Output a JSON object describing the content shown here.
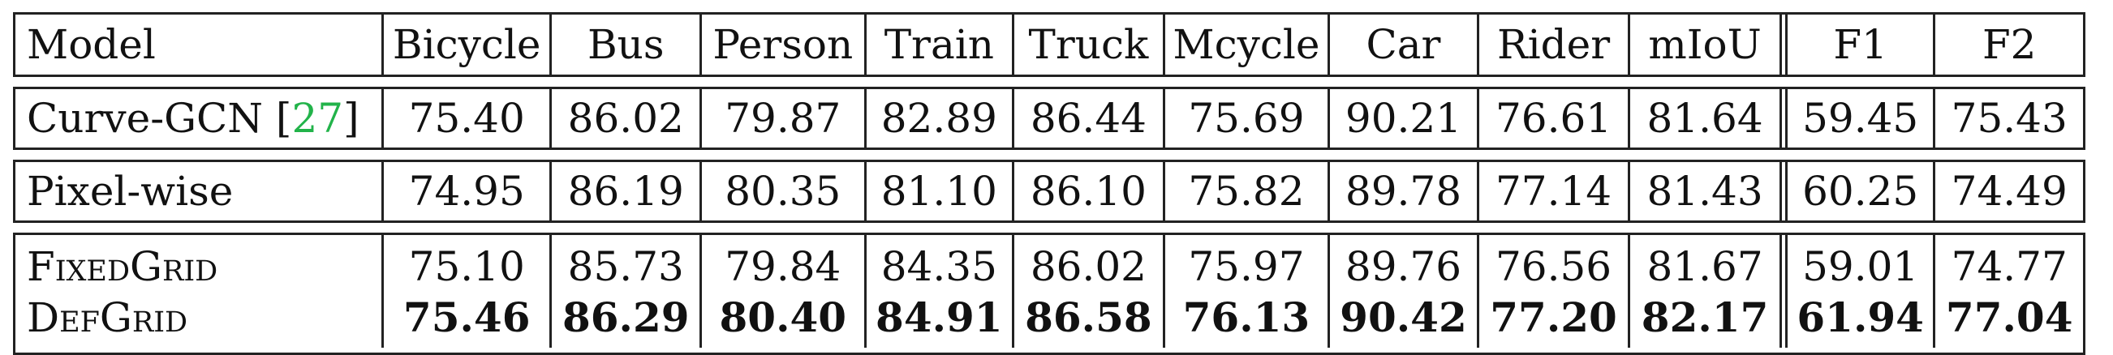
{
  "columns": [
    "Model",
    "Bicycle",
    "Bus",
    "Person",
    "Train",
    "Truck",
    "Mcycle",
    "Car",
    "Rider",
    "mIoU",
    "F1",
    "F2"
  ],
  "rows": [
    {
      "model_pre": "Curve-GCN [",
      "ref": "27",
      "model_post": "]",
      "values": [
        "75.40",
        "86.02",
        "79.87",
        "82.89",
        "86.44",
        "75.69",
        "90.21",
        "76.61",
        "81.64",
        "59.45",
        "75.43"
      ]
    },
    {
      "model": "Pixel-wise",
      "values": [
        "74.95",
        "86.19",
        "80.35",
        "81.10",
        "86.10",
        "75.82",
        "89.78",
        "77.14",
        "81.43",
        "60.25",
        "74.49"
      ]
    },
    {
      "model": "FixedGrid",
      "values": [
        "75.10",
        "85.73",
        "79.84",
        "84.35",
        "86.02",
        "75.97",
        "89.76",
        "76.56",
        "81.67",
        "59.01",
        "74.77"
      ]
    },
    {
      "model": "DefGrid",
      "values": [
        "75.46",
        "86.29",
        "80.40",
        "84.91",
        "86.58",
        "76.13",
        "90.42",
        "77.20",
        "82.17",
        "61.94",
        "77.04"
      ]
    }
  ]
}
